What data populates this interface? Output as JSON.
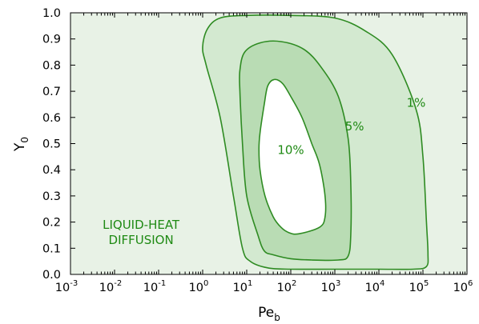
{
  "chart_data": {
    "type": "contour",
    "xlabel": {
      "main": "Pe",
      "sub": "b"
    },
    "ylabel": {
      "main": "Y",
      "sub": "0"
    },
    "x_scale": "log",
    "x_range": [
      0.001,
      1000000
    ],
    "y_range": [
      0.0,
      1.0
    ],
    "x_ticks": [
      {
        "base": "10",
        "exp": "-3",
        "value": 0.001
      },
      {
        "base": "10",
        "exp": "-2",
        "value": 0.01
      },
      {
        "base": "10",
        "exp": "-1",
        "value": 0.1
      },
      {
        "base": "10",
        "exp": "0",
        "value": 1
      },
      {
        "base": "10",
        "exp": "1",
        "value": 10
      },
      {
        "base": "10",
        "exp": "2",
        "value": 100
      },
      {
        "base": "10",
        "exp": "3",
        "value": 1000
      },
      {
        "base": "10",
        "exp": "4",
        "value": 10000
      },
      {
        "base": "10",
        "exp": "5",
        "value": 100000
      },
      {
        "base": "10",
        "exp": "6",
        "value": 1000000
      }
    ],
    "y_ticks": [
      "0.0",
      "0.1",
      "0.2",
      "0.3",
      "0.4",
      "0.5",
      "0.6",
      "0.7",
      "0.8",
      "0.9",
      "1.0"
    ],
    "grid": false,
    "colors": {
      "background_region": "#e8f2e6",
      "level_1": "#d3e9d0",
      "level_5": "#b9dcb4",
      "level_10": "#ffffff",
      "line": "#2e8b22",
      "label": "#1f8a14"
    },
    "contours": [
      {
        "label": "1%",
        "label_at": [
          70000,
          0.64
        ],
        "points": [
          [
            1.0,
            0.87
          ],
          [
            1.3,
            0.94
          ],
          [
            2.5,
            0.98
          ],
          [
            10,
            0.99
          ],
          [
            100,
            0.99
          ],
          [
            1000,
            0.98
          ],
          [
            5000,
            0.93
          ],
          [
            20000,
            0.84
          ],
          [
            70000,
            0.63
          ],
          [
            100000,
            0.45
          ],
          [
            120000,
            0.2
          ],
          [
            130000,
            0.08
          ],
          [
            120000,
            0.03
          ],
          [
            60000,
            0.02
          ],
          [
            10000,
            0.02
          ],
          [
            1000,
            0.02
          ],
          [
            100,
            0.02
          ],
          [
            30,
            0.025
          ],
          [
            12,
            0.05
          ],
          [
            8,
            0.1
          ],
          [
            5,
            0.3
          ],
          [
            2.5,
            0.6
          ],
          [
            1.2,
            0.8
          ],
          [
            1.0,
            0.87
          ]
        ]
      },
      {
        "label": "5%",
        "label_at": [
          2800,
          0.55
        ],
        "points": [
          [
            7,
            0.78
          ],
          [
            9,
            0.85
          ],
          [
            20,
            0.885
          ],
          [
            60,
            0.89
          ],
          [
            200,
            0.86
          ],
          [
            500,
            0.79
          ],
          [
            1200,
            0.68
          ],
          [
            2000,
            0.52
          ],
          [
            2300,
            0.35
          ],
          [
            2300,
            0.15
          ],
          [
            2000,
            0.07
          ],
          [
            1200,
            0.055
          ],
          [
            300,
            0.055
          ],
          [
            100,
            0.06
          ],
          [
            40,
            0.075
          ],
          [
            25,
            0.09
          ],
          [
            18,
            0.15
          ],
          [
            10,
            0.3
          ],
          [
            8,
            0.5
          ],
          [
            7,
            0.7
          ],
          [
            7,
            0.78
          ]
        ]
      },
      {
        "label": "10%",
        "label_at": [
          100,
          0.46
        ],
        "points": [
          [
            20,
            0.54
          ],
          [
            25,
            0.65
          ],
          [
            30,
            0.72
          ],
          [
            42,
            0.745
          ],
          [
            65,
            0.73
          ],
          [
            100,
            0.68
          ],
          [
            180,
            0.6
          ],
          [
            300,
            0.5
          ],
          [
            450,
            0.42
          ],
          [
            600,
            0.3
          ],
          [
            600,
            0.22
          ],
          [
            450,
            0.18
          ],
          [
            150,
            0.155
          ],
          [
            90,
            0.16
          ],
          [
            60,
            0.18
          ],
          [
            40,
            0.22
          ],
          [
            26,
            0.3
          ],
          [
            20,
            0.4
          ],
          [
            19,
            0.48
          ],
          [
            20,
            0.54
          ]
        ]
      }
    ],
    "annotations": [
      {
        "lines": [
          "LIQUID-HEAT",
          "DIFFUSION"
        ],
        "at": [
          0.04,
          0.175
        ]
      }
    ]
  }
}
